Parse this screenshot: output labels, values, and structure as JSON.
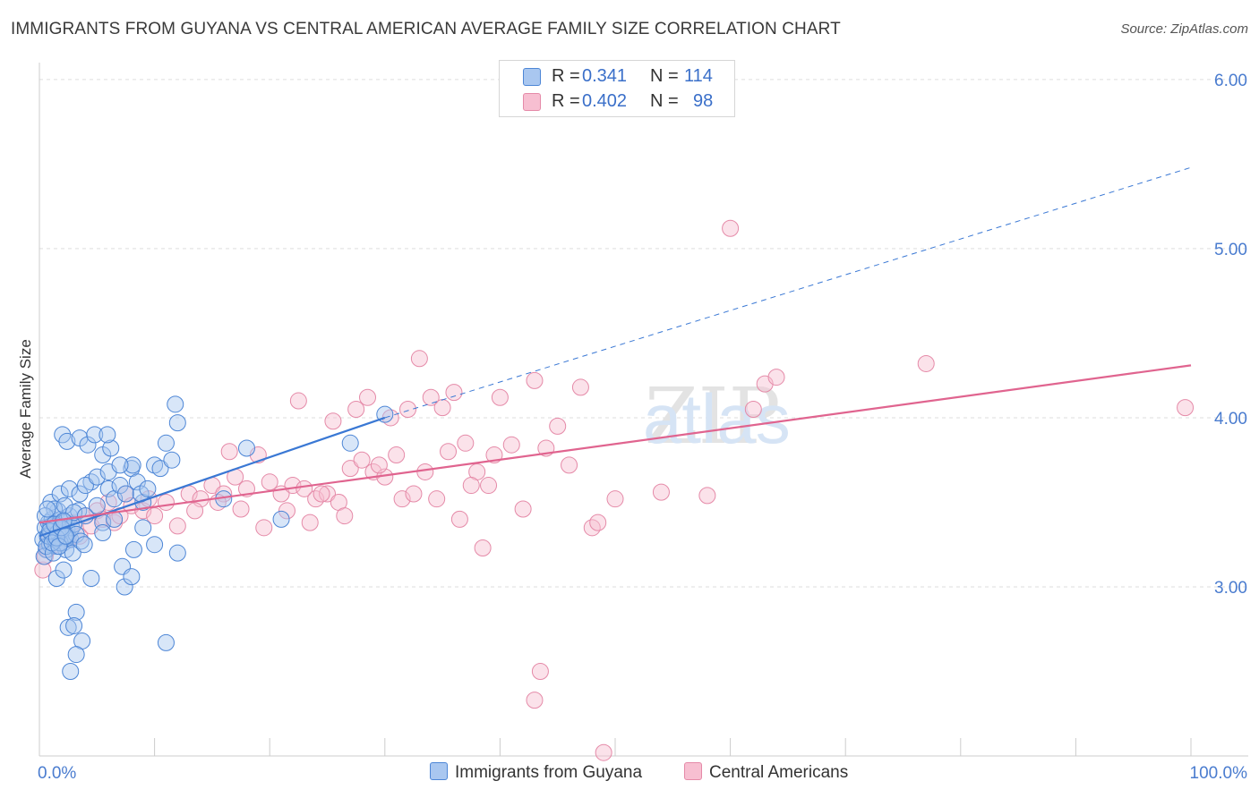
{
  "title": "IMMIGRANTS FROM GUYANA VS CENTRAL AMERICAN AVERAGE FAMILY SIZE CORRELATION CHART",
  "source": "Source: ZipAtlas.com",
  "watermark": "ZIPatlas",
  "legend": {
    "rows": [
      {
        "r_label": "R =",
        "r_value": "0.341",
        "n_label": "N =",
        "n_value": "114"
      },
      {
        "r_label": "R =",
        "r_value": "0.402",
        "n_label": "N =",
        "n_value": "98"
      }
    ]
  },
  "colors": {
    "guyana_fill": "#a9c7f0",
    "guyana_stroke": "#4d86d6",
    "guyana_line": "#3a78d4",
    "central_fill": "#f7bfd1",
    "central_stroke": "#e58aa8",
    "central_line": "#e0648f",
    "tick_label": "#4a7ccf",
    "grid": "#dddddd"
  },
  "chart_data": {
    "type": "scatter",
    "title": "IMMIGRANTS FROM GUYANA VS CENTRAL AMERICAN AVERAGE FAMILY SIZE CORRELATION CHART",
    "xlabel": "",
    "ylabel": "Average Family Size",
    "xlim": [
      0,
      100
    ],
    "ylim": [
      2.0,
      6.1
    ],
    "x_tick_labels": [
      "0.0%",
      "100.0%"
    ],
    "y_ticks": [
      3.0,
      4.0,
      5.0,
      6.0
    ],
    "y_tick_labels": [
      "3.00",
      "4.00",
      "5.00",
      "6.00"
    ],
    "grid": "horizontal dashed",
    "legend_position": "top-center",
    "series": [
      {
        "name": "Immigrants from Guyana",
        "r": 0.341,
        "n": 114,
        "trend": {
          "x0": 0,
          "y0": 3.3,
          "x1": 30,
          "y1": 4.0,
          "dashed_to_x": 100,
          "dashed_to_y": 5.48
        },
        "points": [
          [
            0.3,
            3.28
          ],
          [
            0.5,
            3.35
          ],
          [
            0.6,
            3.22
          ],
          [
            0.7,
            3.3
          ],
          [
            0.8,
            3.38
          ],
          [
            0.9,
            3.25
          ],
          [
            1.0,
            3.32
          ],
          [
            1.1,
            3.4
          ],
          [
            1.2,
            3.3
          ],
          [
            1.3,
            3.27
          ],
          [
            1.4,
            3.36
          ],
          [
            1.5,
            3.24
          ],
          [
            1.6,
            3.45
          ],
          [
            1.7,
            3.33
          ],
          [
            1.8,
            3.29
          ],
          [
            1.9,
            3.4
          ],
          [
            2.0,
            3.31
          ],
          [
            2.1,
            3.26
          ],
          [
            2.2,
            3.38
          ],
          [
            2.3,
            3.22
          ],
          [
            2.4,
            3.34
          ],
          [
            2.5,
            3.3
          ],
          [
            2.6,
            3.42
          ],
          [
            2.7,
            3.28
          ],
          [
            2.8,
            3.35
          ],
          [
            2.9,
            3.2
          ],
          [
            3.0,
            3.37
          ],
          [
            3.2,
            3.31
          ],
          [
            3.4,
            3.45
          ],
          [
            3.6,
            3.27
          ],
          [
            1.0,
            3.5
          ],
          [
            1.3,
            3.46
          ],
          [
            1.8,
            3.55
          ],
          [
            2.2,
            3.48
          ],
          [
            2.6,
            3.58
          ],
          [
            3.0,
            3.44
          ],
          [
            3.5,
            3.55
          ],
          [
            4.0,
            3.42
          ],
          [
            4.5,
            3.62
          ],
          [
            5.0,
            3.48
          ],
          [
            5.5,
            3.38
          ],
          [
            6.0,
            3.58
          ],
          [
            6.5,
            3.52
          ],
          [
            7.0,
            3.6
          ],
          [
            7.5,
            3.55
          ],
          [
            8.0,
            3.7
          ],
          [
            8.5,
            3.62
          ],
          [
            9.0,
            3.5
          ],
          [
            10.0,
            3.72
          ],
          [
            11.0,
            3.85
          ],
          [
            2.0,
            3.9
          ],
          [
            2.4,
            3.86
          ],
          [
            3.5,
            3.88
          ],
          [
            4.2,
            3.84
          ],
          [
            5.5,
            3.78
          ],
          [
            6.2,
            3.82
          ],
          [
            4.8,
            3.9
          ],
          [
            5.9,
            3.9
          ],
          [
            8.1,
            3.72
          ],
          [
            8.8,
            3.55
          ],
          [
            9.4,
            3.58
          ],
          [
            10.5,
            3.7
          ],
          [
            11.5,
            3.75
          ],
          [
            12.0,
            3.97
          ],
          [
            11.8,
            4.08
          ],
          [
            16.0,
            3.52
          ],
          [
            18.0,
            3.82
          ],
          [
            21.0,
            3.4
          ],
          [
            27.0,
            3.85
          ],
          [
            30.0,
            4.02
          ],
          [
            1.5,
            3.05
          ],
          [
            2.1,
            3.1
          ],
          [
            3.2,
            2.85
          ],
          [
            2.5,
            2.76
          ],
          [
            3.0,
            2.77
          ],
          [
            3.7,
            2.68
          ],
          [
            2.7,
            2.5
          ],
          [
            3.2,
            2.6
          ],
          [
            7.2,
            3.12
          ],
          [
            7.4,
            3.0
          ],
          [
            8.0,
            3.06
          ],
          [
            8.2,
            3.22
          ],
          [
            9.0,
            3.35
          ],
          [
            10.0,
            3.25
          ],
          [
            11.0,
            2.67
          ],
          [
            12.0,
            3.2
          ],
          [
            4.5,
            3.05
          ],
          [
            5.5,
            3.32
          ],
          [
            6.5,
            3.4
          ],
          [
            3.9,
            3.25
          ],
          [
            0.4,
            3.18
          ],
          [
            0.6,
            3.24
          ],
          [
            0.8,
            3.3
          ],
          [
            1.0,
            3.36
          ],
          [
            1.2,
            3.2
          ],
          [
            1.4,
            3.28
          ],
          [
            1.6,
            3.32
          ],
          [
            1.8,
            3.26
          ],
          [
            2.0,
            3.34
          ],
          [
            2.2,
            3.3
          ],
          [
            0.5,
            3.42
          ],
          [
            0.7,
            3.46
          ],
          [
            0.9,
            3.33
          ],
          [
            1.1,
            3.26
          ],
          [
            1.3,
            3.37
          ],
          [
            1.5,
            3.29
          ],
          [
            1.7,
            3.24
          ],
          [
            1.9,
            3.35
          ],
          [
            2.1,
            3.39
          ],
          [
            2.3,
            3.3
          ],
          [
            4.0,
            3.6
          ],
          [
            5.0,
            3.65
          ],
          [
            6.0,
            3.68
          ],
          [
            7.0,
            3.72
          ]
        ]
      },
      {
        "name": "Central Americans",
        "r": 0.402,
        "n": 98,
        "trend": {
          "x0": 0,
          "y0": 3.38,
          "x1": 100,
          "y1": 4.31
        },
        "points": [
          [
            0.3,
            3.1
          ],
          [
            0.5,
            3.18
          ],
          [
            0.7,
            3.22
          ],
          [
            0.9,
            3.28
          ],
          [
            1.1,
            3.3
          ],
          [
            1.3,
            3.35
          ],
          [
            1.5,
            3.25
          ],
          [
            2.0,
            3.32
          ],
          [
            2.5,
            3.28
          ],
          [
            3.0,
            3.38
          ],
          [
            3.5,
            3.3
          ],
          [
            4.0,
            3.42
          ],
          [
            4.5,
            3.36
          ],
          [
            5.0,
            3.45
          ],
          [
            5.5,
            3.4
          ],
          [
            6.0,
            3.5
          ],
          [
            6.5,
            3.38
          ],
          [
            7.0,
            3.42
          ],
          [
            7.5,
            3.55
          ],
          [
            8.0,
            3.48
          ],
          [
            9.0,
            3.45
          ],
          [
            10.0,
            3.42
          ],
          [
            11.0,
            3.5
          ],
          [
            12.0,
            3.36
          ],
          [
            13.0,
            3.55
          ],
          [
            14.0,
            3.52
          ],
          [
            15.0,
            3.6
          ],
          [
            16.0,
            3.55
          ],
          [
            17.0,
            3.65
          ],
          [
            18.0,
            3.58
          ],
          [
            13.5,
            3.45
          ],
          [
            15.5,
            3.5
          ],
          [
            16.5,
            3.8
          ],
          [
            17.5,
            3.46
          ],
          [
            19.0,
            3.78
          ],
          [
            20.0,
            3.62
          ],
          [
            21.0,
            3.55
          ],
          [
            22.0,
            3.6
          ],
          [
            23.0,
            3.58
          ],
          [
            24.0,
            3.52
          ],
          [
            19.5,
            3.35
          ],
          [
            21.5,
            3.45
          ],
          [
            23.5,
            3.38
          ],
          [
            25.0,
            3.55
          ],
          [
            26.0,
            3.5
          ],
          [
            27.0,
            3.7
          ],
          [
            28.0,
            3.75
          ],
          [
            29.0,
            3.68
          ],
          [
            30.0,
            3.65
          ],
          [
            31.0,
            3.78
          ],
          [
            22.5,
            4.1
          ],
          [
            25.5,
            3.98
          ],
          [
            27.5,
            4.05
          ],
          [
            28.5,
            4.12
          ],
          [
            30.5,
            4.0
          ],
          [
            32.0,
            4.05
          ],
          [
            33.0,
            4.35
          ],
          [
            34.0,
            4.12
          ],
          [
            35.0,
            4.06
          ],
          [
            36.0,
            4.15
          ],
          [
            31.5,
            3.52
          ],
          [
            33.5,
            3.68
          ],
          [
            35.5,
            3.8
          ],
          [
            37.0,
            3.85
          ],
          [
            38.0,
            3.68
          ],
          [
            39.0,
            3.6
          ],
          [
            40.0,
            4.12
          ],
          [
            41.0,
            3.84
          ],
          [
            42.0,
            3.46
          ],
          [
            44.0,
            3.82
          ],
          [
            46.0,
            3.72
          ],
          [
            47.0,
            4.18
          ],
          [
            48.0,
            3.35
          ],
          [
            50.0,
            3.52
          ],
          [
            54.0,
            3.56
          ],
          [
            58.0,
            3.54
          ],
          [
            60.0,
            5.12
          ],
          [
            62.0,
            4.05
          ],
          [
            63.0,
            4.2
          ],
          [
            64.0,
            4.24
          ],
          [
            77.0,
            4.32
          ],
          [
            99.5,
            4.06
          ],
          [
            36.5,
            3.4
          ],
          [
            38.5,
            3.23
          ],
          [
            43.0,
            4.22
          ],
          [
            45.0,
            3.95
          ],
          [
            48.5,
            3.38
          ],
          [
            24.5,
            3.55
          ],
          [
            26.5,
            3.42
          ],
          [
            29.5,
            3.72
          ],
          [
            43.5,
            2.5
          ],
          [
            43.0,
            2.33
          ],
          [
            49.0,
            2.02
          ],
          [
            39.5,
            3.78
          ],
          [
            37.5,
            3.6
          ],
          [
            34.5,
            3.52
          ],
          [
            32.5,
            3.55
          ],
          [
            9.5,
            3.52
          ]
        ]
      }
    ]
  },
  "bottom_legend": [
    "Immigrants from Guyana",
    "Central Americans"
  ]
}
